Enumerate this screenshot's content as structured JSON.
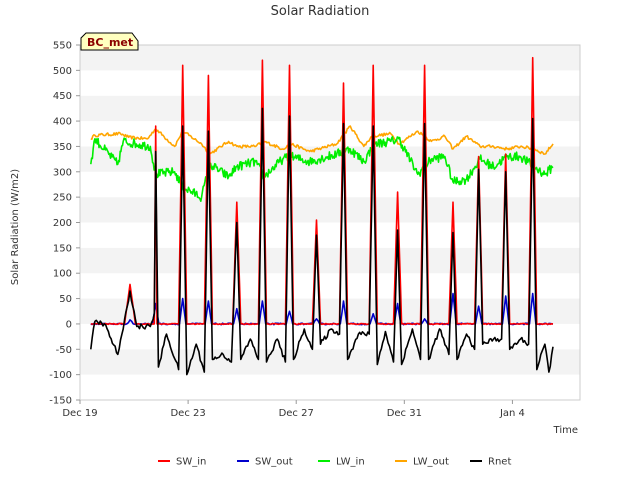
{
  "chart_data": {
    "type": "line",
    "title": "Solar Radiation",
    "xlabel": "Time",
    "ylabel": "Solar Radiation (W/m2)",
    "ylim": [
      -150,
      550
    ],
    "yticks": [
      -150,
      -100,
      -50,
      0,
      50,
      100,
      150,
      200,
      250,
      300,
      350,
      400,
      450,
      500,
      550
    ],
    "xlim_days": [
      0,
      18.5
    ],
    "x_tick_labels": [
      {
        "label": "Dec 19",
        "day": 0
      },
      {
        "label": "Dec 23",
        "day": 4
      },
      {
        "label": "Dec 27",
        "day": 8
      },
      {
        "label": "Dec 31",
        "day": 12
      },
      {
        "label": "Jan 4",
        "day": 16
      }
    ],
    "grid": "horizontal bands",
    "legend_position": "bottom",
    "badge": "BC_met",
    "day_noon_offsets": [
      1.85,
      2.8,
      3.8,
      4.75,
      5.8,
      6.75,
      7.75,
      8.75,
      9.75,
      10.85,
      11.75,
      12.75,
      13.8,
      14.75,
      15.75,
      16.75,
      17.2
    ],
    "series": [
      {
        "name": "SW_in",
        "color": "#ff0000",
        "x": [
          0.4,
          1.65,
          1.85,
          2.05,
          2.75,
          2.8,
          2.85,
          3.65,
          3.8,
          3.95,
          4.6,
          4.75,
          4.9,
          5.65,
          5.8,
          5.95,
          6.6,
          6.75,
          6.9,
          7.6,
          7.75,
          7.9,
          8.6,
          8.75,
          8.9,
          9.6,
          9.75,
          9.9,
          10.7,
          10.85,
          11.0,
          11.6,
          11.75,
          11.9,
          12.6,
          12.75,
          12.9,
          13.65,
          13.8,
          13.95,
          14.6,
          14.75,
          14.9,
          15.6,
          15.75,
          15.9,
          16.6,
          16.75,
          16.9,
          17.05,
          17.2,
          17.35,
          17.5
        ],
        "y": [
          0,
          0,
          78,
          0,
          0,
          390,
          0,
          0,
          510,
          0,
          0,
          490,
          0,
          0,
          240,
          0,
          0,
          520,
          0,
          0,
          510,
          0,
          0,
          205,
          0,
          0,
          475,
          0,
          0,
          510,
          0,
          0,
          260,
          0,
          0,
          510,
          0,
          0,
          240,
          0,
          0,
          330,
          0,
          0,
          335,
          0,
          0,
          525,
          0,
          0,
          0,
          0,
          0
        ]
      },
      {
        "name": "SW_out",
        "color": "#0000cc",
        "x": [
          0.4,
          1.85,
          2.8,
          3.8,
          4.75,
          5.8,
          6.75,
          7.75,
          8.75,
          9.75,
          10.85,
          11.75,
          12.75,
          13.8,
          14.75,
          15.75,
          16.75,
          17.5
        ],
        "y": [
          0,
          8,
          40,
          50,
          45,
          30,
          45,
          25,
          10,
          45,
          20,
          40,
          10,
          60,
          35,
          55,
          60,
          0
        ]
      },
      {
        "name": "LW_in",
        "color": "#00ee00",
        "x": [
          0.4,
          0.55,
          1.4,
          1.6,
          2.6,
          2.8,
          3.5,
          3.8,
          4.5,
          4.8,
          5.5,
          5.8,
          6.5,
          6.8,
          7.5,
          7.8,
          8.5,
          9.5,
          10.0,
          10.5,
          10.9,
          11.5,
          11.8,
          12.5,
          13.0,
          13.5,
          13.8,
          14.3,
          14.8,
          15.3,
          15.8,
          16.3,
          16.8,
          17.2,
          17.5
        ],
        "y": [
          315,
          365,
          315,
          360,
          350,
          295,
          300,
          270,
          250,
          315,
          290,
          310,
          320,
          290,
          325,
          330,
          320,
          335,
          345,
          320,
          355,
          360,
          365,
          295,
          325,
          330,
          280,
          285,
          325,
          310,
          330,
          330,
          310,
          295,
          310
        ]
      },
      {
        "name": "LW_out",
        "color": "#ffa500",
        "x": [
          0.4,
          0.55,
          1.5,
          1.8,
          2.5,
          2.8,
          3.5,
          3.8,
          4.5,
          4.8,
          5.5,
          5.8,
          6.5,
          6.8,
          7.5,
          7.8,
          8.5,
          9.5,
          10.0,
          10.5,
          10.8,
          11.5,
          11.8,
          12.5,
          13.0,
          13.5,
          13.8,
          14.3,
          14.8,
          15.3,
          15.8,
          16.3,
          16.8,
          17.2,
          17.5
        ],
        "y": [
          365,
          372,
          375,
          368,
          365,
          385,
          350,
          380,
          355,
          335,
          360,
          350,
          350,
          360,
          345,
          355,
          340,
          355,
          390,
          350,
          370,
          375,
          355,
          380,
          360,
          370,
          345,
          370,
          350,
          350,
          345,
          350,
          345,
          335,
          355
        ]
      },
      {
        "name": "Rnet",
        "color": "#000000",
        "x": [
          0.4,
          0.55,
          0.9,
          1.4,
          1.6,
          1.85,
          2.1,
          2.6,
          2.75,
          2.8,
          2.9,
          3.2,
          3.65,
          3.8,
          3.95,
          4.3,
          4.6,
          4.75,
          4.9,
          5.3,
          5.6,
          5.8,
          5.95,
          6.3,
          6.6,
          6.75,
          6.9,
          7.3,
          7.6,
          7.75,
          7.9,
          8.3,
          8.6,
          8.75,
          8.9,
          9.3,
          9.6,
          9.75,
          9.9,
          10.3,
          10.7,
          10.85,
          11.0,
          11.3,
          11.6,
          11.75,
          11.9,
          12.3,
          12.6,
          12.75,
          12.9,
          13.3,
          13.65,
          13.8,
          13.95,
          14.3,
          14.6,
          14.75,
          14.9,
          15.3,
          15.6,
          15.75,
          15.9,
          16.3,
          16.6,
          16.75,
          16.9,
          17.2,
          17.35,
          17.5
        ],
        "y": [
          -50,
          5,
          0,
          -60,
          -10,
          65,
          -5,
          -5,
          20,
          340,
          -85,
          -20,
          -90,
          390,
          -100,
          -40,
          -95,
          380,
          -70,
          -60,
          -75,
          200,
          -70,
          -30,
          -70,
          425,
          -75,
          -30,
          -75,
          410,
          -70,
          -10,
          -50,
          175,
          -40,
          -10,
          -20,
          395,
          -70,
          -20,
          -20,
          390,
          -80,
          -15,
          -75,
          185,
          -80,
          -10,
          -70,
          395,
          -70,
          -10,
          -60,
          180,
          -70,
          -20,
          -50,
          305,
          -40,
          -30,
          -30,
          300,
          -50,
          -30,
          -40,
          405,
          -90,
          -40,
          -95,
          -45
        ]
      }
    ]
  }
}
